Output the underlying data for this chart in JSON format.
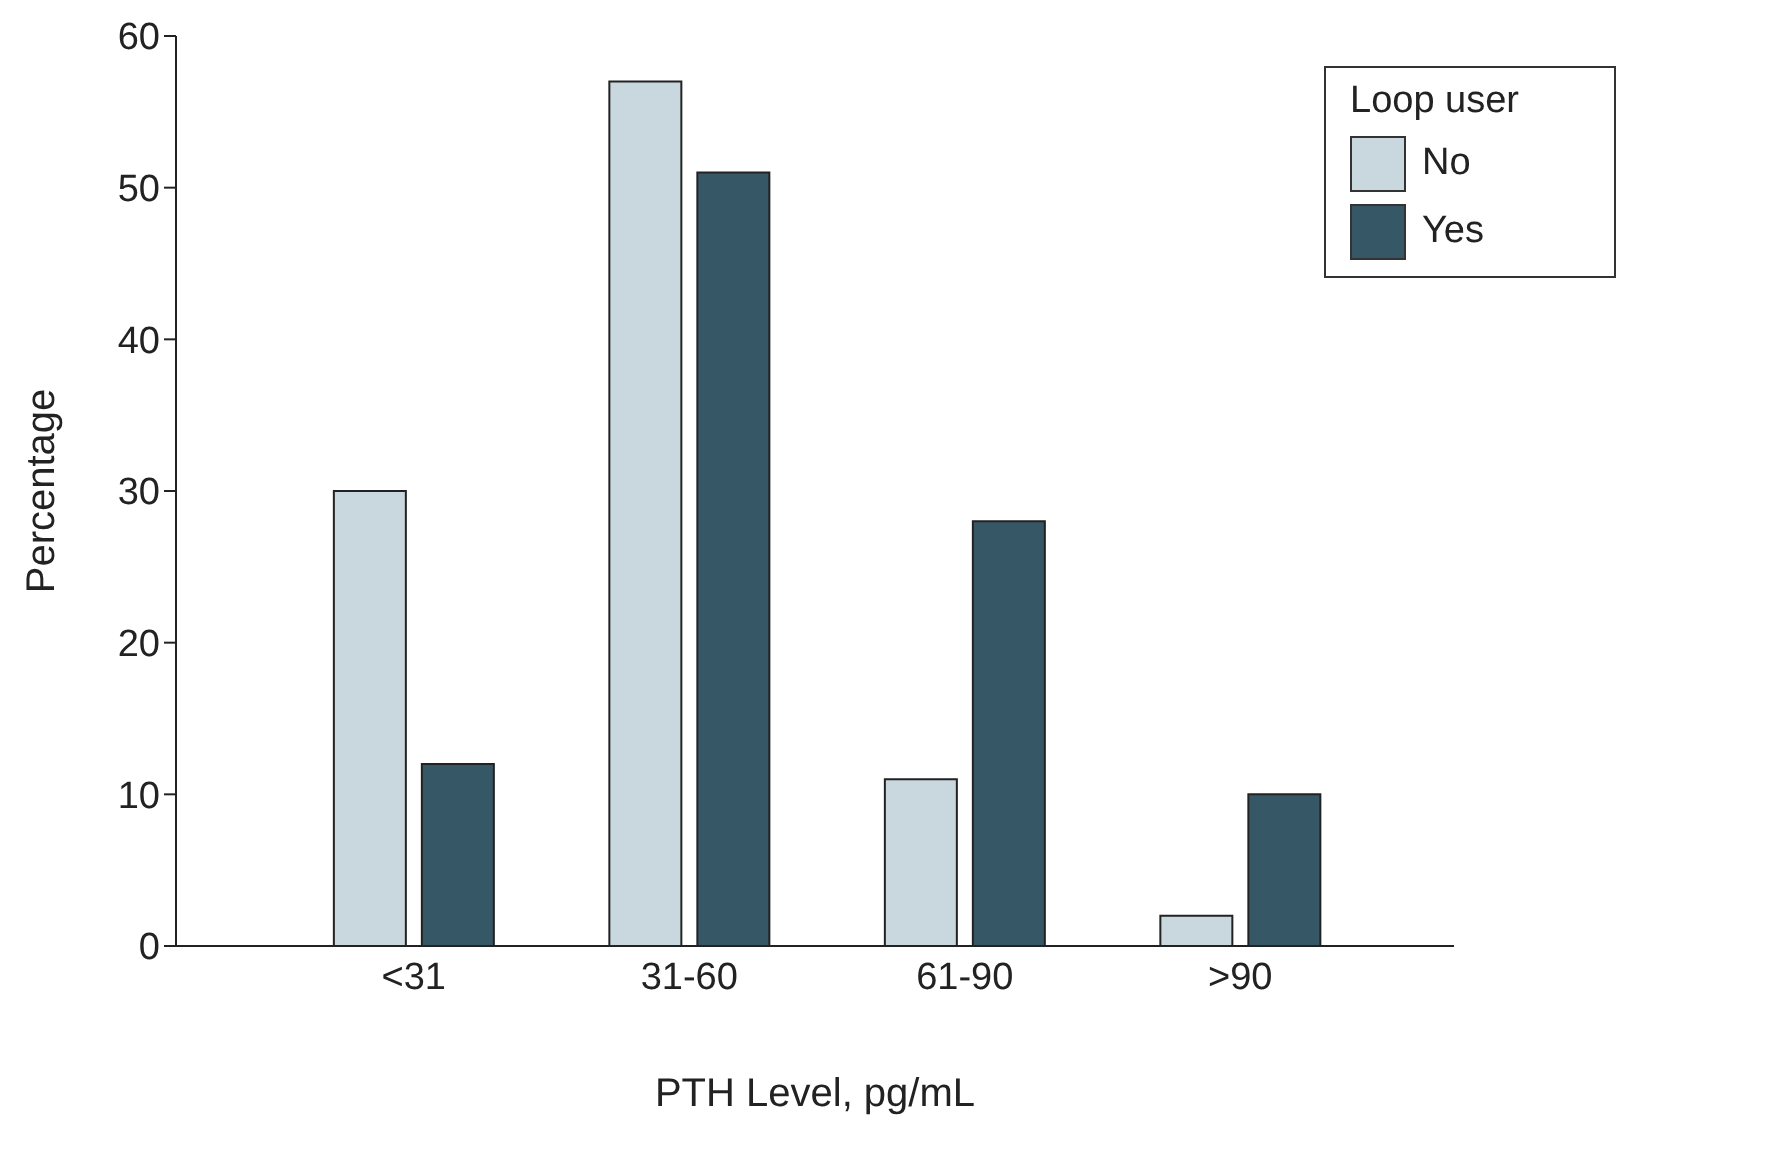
{
  "chart_data": {
    "type": "bar",
    "xlabel": "PTH Level, pg/mL",
    "ylabel": "Percentage",
    "legend_title": "Loop user",
    "categories": [
      "<31",
      "31-60",
      "61-90",
      ">90"
    ],
    "series": [
      {
        "name": "No",
        "color": "#c9d8df",
        "values": [
          30,
          57,
          11,
          2
        ]
      },
      {
        "name": "Yes",
        "color": "#365866",
        "values": [
          12,
          51,
          28,
          10
        ]
      }
    ],
    "ylim": [
      0,
      60
    ],
    "yticks": [
      0,
      10,
      20,
      30,
      40,
      50,
      60
    ],
    "grid": false,
    "legend": "top right"
  }
}
